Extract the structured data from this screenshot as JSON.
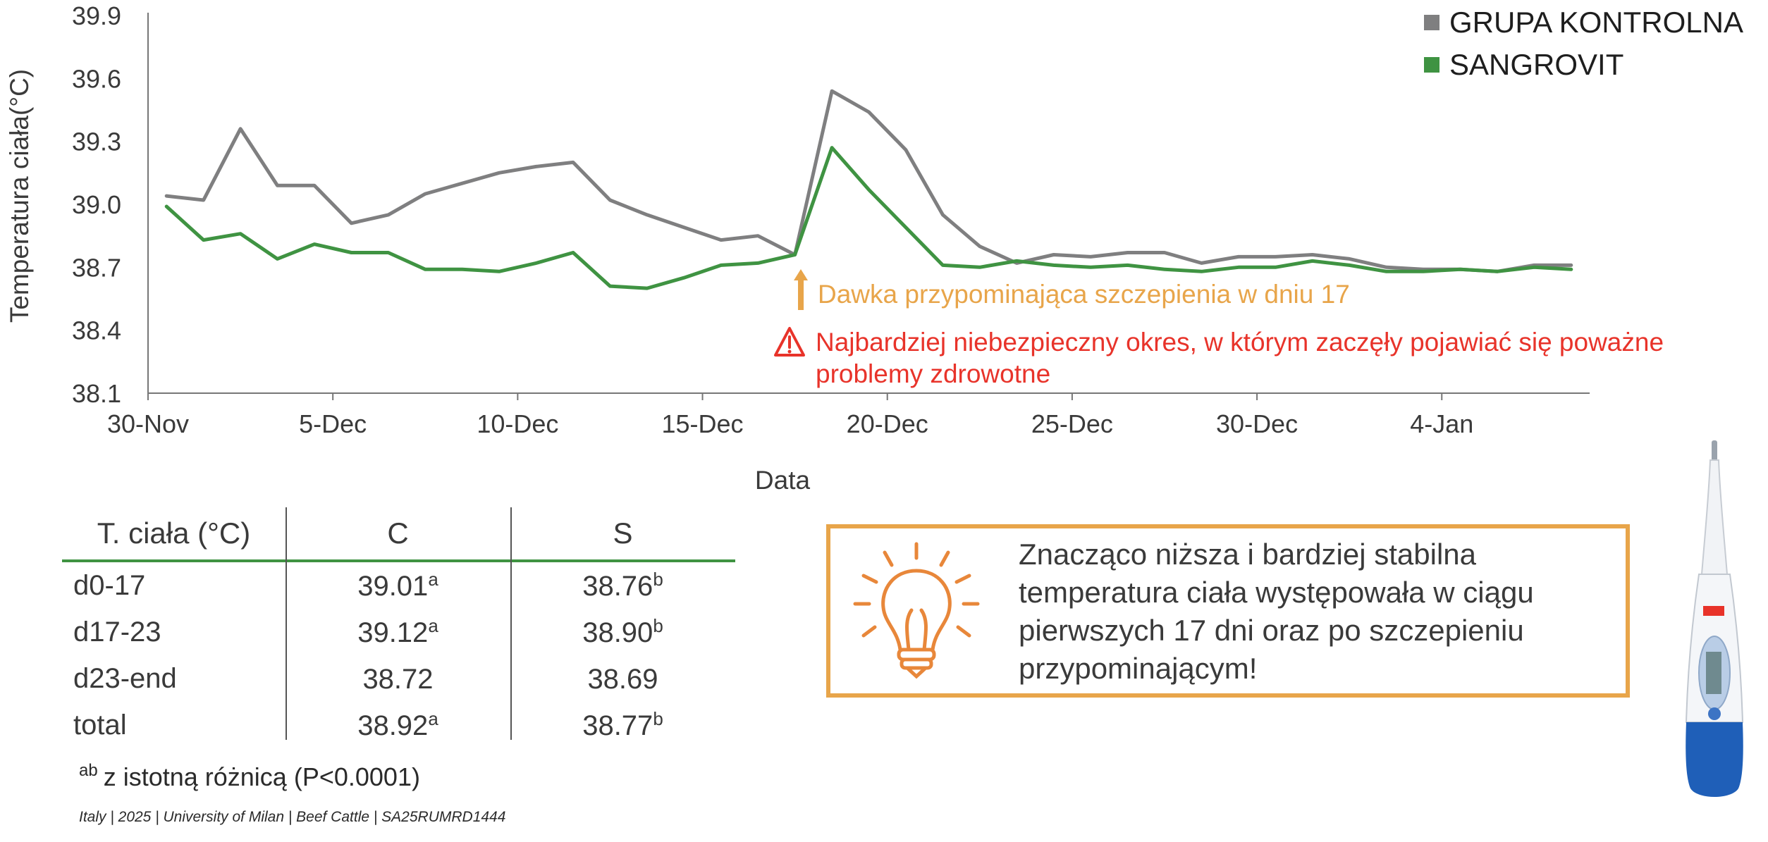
{
  "chart_data": {
    "type": "line",
    "xlabel": "Data",
    "ylabel": "Temperatura ciała(°C)",
    "ylim": [
      38.1,
      39.9
    ],
    "y_ticks": [
      "38.1",
      "38.4",
      "38.7",
      "39.0",
      "39.3",
      "39.6",
      "39.9"
    ],
    "x_tick_labels": [
      "30-Nov",
      "5-Dec",
      "10-Dec",
      "15-Dec",
      "20-Dec",
      "25-Dec",
      "30-Dec",
      "4-Jan"
    ],
    "x_tick_days": [
      0,
      5,
      10,
      15,
      20,
      25,
      30,
      35
    ],
    "x_range_days": [
      0,
      39
    ],
    "x_start_label": "30-Nov",
    "x": [
      0.5,
      1.5,
      2.5,
      3.5,
      4.5,
      5.5,
      6.5,
      7.5,
      8.5,
      9.5,
      10.5,
      11.5,
      12.5,
      13.5,
      14.5,
      15.5,
      16.5,
      17.5,
      18.5,
      19.5,
      20.5,
      21.5,
      22.5,
      23.5,
      24.5,
      25.5,
      26.5,
      27.5,
      28.5,
      29.5,
      30.5,
      31.5,
      32.5,
      33.5,
      34.5,
      35.5,
      36.5,
      37.5,
      38.5
    ],
    "series": [
      {
        "name": "GRUPA KONTROLNA",
        "color": "#7f7f80",
        "values": [
          39.04,
          39.02,
          39.36,
          39.09,
          39.09,
          38.91,
          38.95,
          39.05,
          39.1,
          39.15,
          39.18,
          39.2,
          39.02,
          38.95,
          38.89,
          38.83,
          38.85,
          38.76,
          39.54,
          39.44,
          39.26,
          38.95,
          38.8,
          38.72,
          38.76,
          38.75,
          38.77,
          38.77,
          38.72,
          38.75,
          38.75,
          38.76,
          38.74,
          38.7,
          38.69,
          38.69,
          38.68,
          38.71,
          38.71
        ]
      },
      {
        "name": "SANGROVIT",
        "color": "#3f9342",
        "values": [
          38.99,
          38.83,
          38.86,
          38.74,
          38.81,
          38.77,
          38.77,
          38.69,
          38.69,
          38.68,
          38.72,
          38.77,
          38.61,
          38.6,
          38.65,
          38.71,
          38.72,
          38.76,
          39.27,
          39.07,
          38.89,
          38.71,
          38.7,
          38.73,
          38.71,
          38.7,
          38.71,
          38.69,
          38.68,
          38.7,
          38.7,
          38.73,
          38.71,
          38.68,
          38.68,
          38.69,
          38.68,
          38.7,
          38.69
        ]
      }
    ],
    "annotations": {
      "booster_day": 17.5,
      "booster_text": "Dawka przypominająca szczepienia w dniu 17",
      "booster_color": "#e8a54a",
      "danger_line1": "Najbardziej niebezpieczny okres, w którym zaczęły pojawiać się poważne",
      "danger_line2": "problemy zdrowotne",
      "danger_color": "#e8332a"
    }
  },
  "table": {
    "header": [
      "T. ciała (°C)",
      "C",
      "S"
    ],
    "rows": [
      {
        "label": "d0-17",
        "c": "39.01",
        "c_sig": "a",
        "s": "38.76",
        "s_sig": "b"
      },
      {
        "label": "d17-23",
        "c": "39.12",
        "c_sig": "a",
        "s": "38.90",
        "s_sig": "b"
      },
      {
        "label": "d23-end",
        "c": "38.72",
        "c_sig": "",
        "s": "38.69",
        "s_sig": ""
      },
      {
        "label": "total",
        "c": "38.92",
        "c_sig": "a",
        "s": "38.77",
        "s_sig": "b"
      }
    ],
    "footnote_sup": "ab",
    "footnote": "z istotną różnicą (P<0.0001)"
  },
  "conclusion": "Znacząco niższa i bardziej stabilna temperatura ciała występowała w ciągu pierwszych 17 dni oraz po szczepieniu przypominającym!",
  "source": "Italy | 2025 | University of Milan | Beef Cattle | SA25RUMRD1444",
  "icons": {
    "conclusion": "lightbulb-icon",
    "product": "thermometer-icon",
    "warning": "warning-icon"
  }
}
